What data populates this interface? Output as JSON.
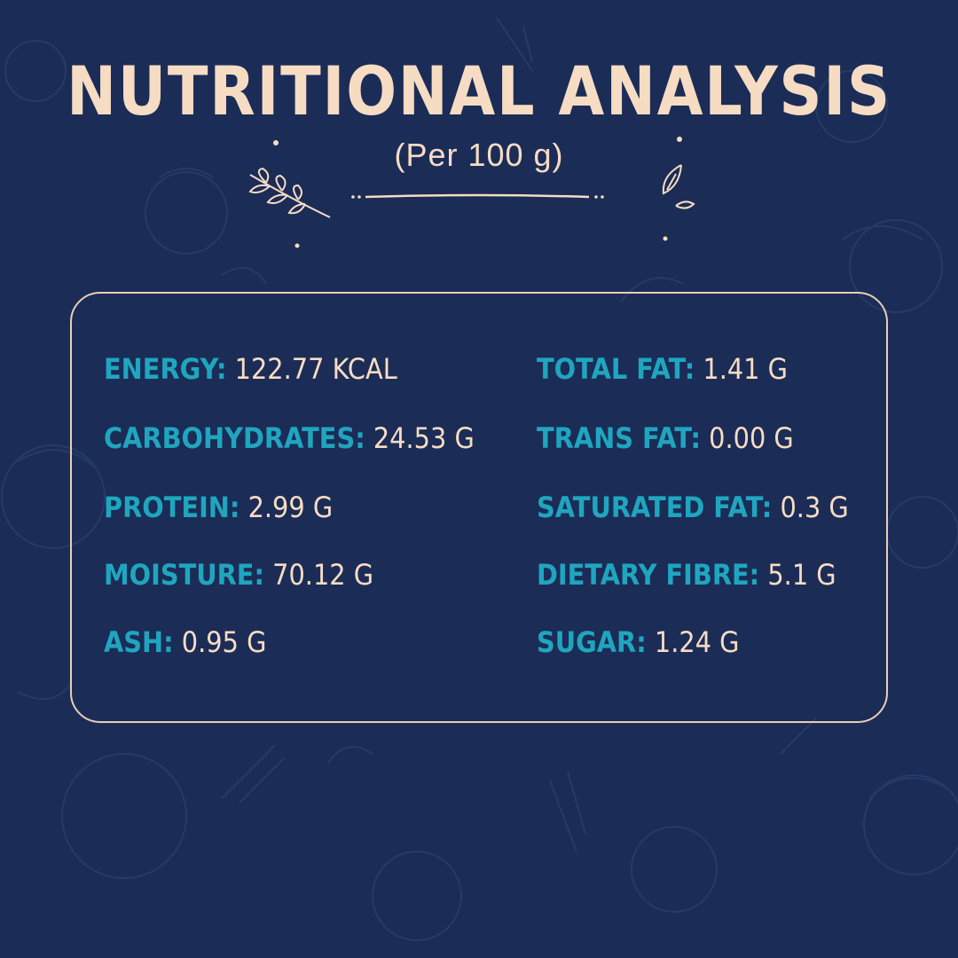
{
  "title": "NUTRITIONAL ANALYSIS",
  "subtitle": "(Per 100 g)",
  "colors": {
    "background": "#1b2c57",
    "label": "#1fa6bf",
    "value": "#f6dcc3",
    "border": "#e8cfb4"
  },
  "nutrients_left": [
    {
      "label": "ENERGY:",
      "value": "122.77 KCAL"
    },
    {
      "label": "CARBOHYDRATES:",
      "value": "24.53 G"
    },
    {
      "label": "PROTEIN:",
      "value": "2.99 G"
    },
    {
      "label": "MOISTURE:",
      "value": "70.12 G"
    },
    {
      "label": "ASH:",
      "value": "0.95 G"
    }
  ],
  "nutrients_right": [
    {
      "label": "TOTAL FAT:",
      "value": "1.41 G"
    },
    {
      "label": "TRANS FAT:",
      "value": "0.00 G"
    },
    {
      "label": "SATURATED FAT:",
      "value": "0.3 G"
    },
    {
      "label": "DIETARY FIBRE:",
      "value": "5.1 G"
    },
    {
      "label": "SUGAR:",
      "value": "1.24 G"
    }
  ]
}
